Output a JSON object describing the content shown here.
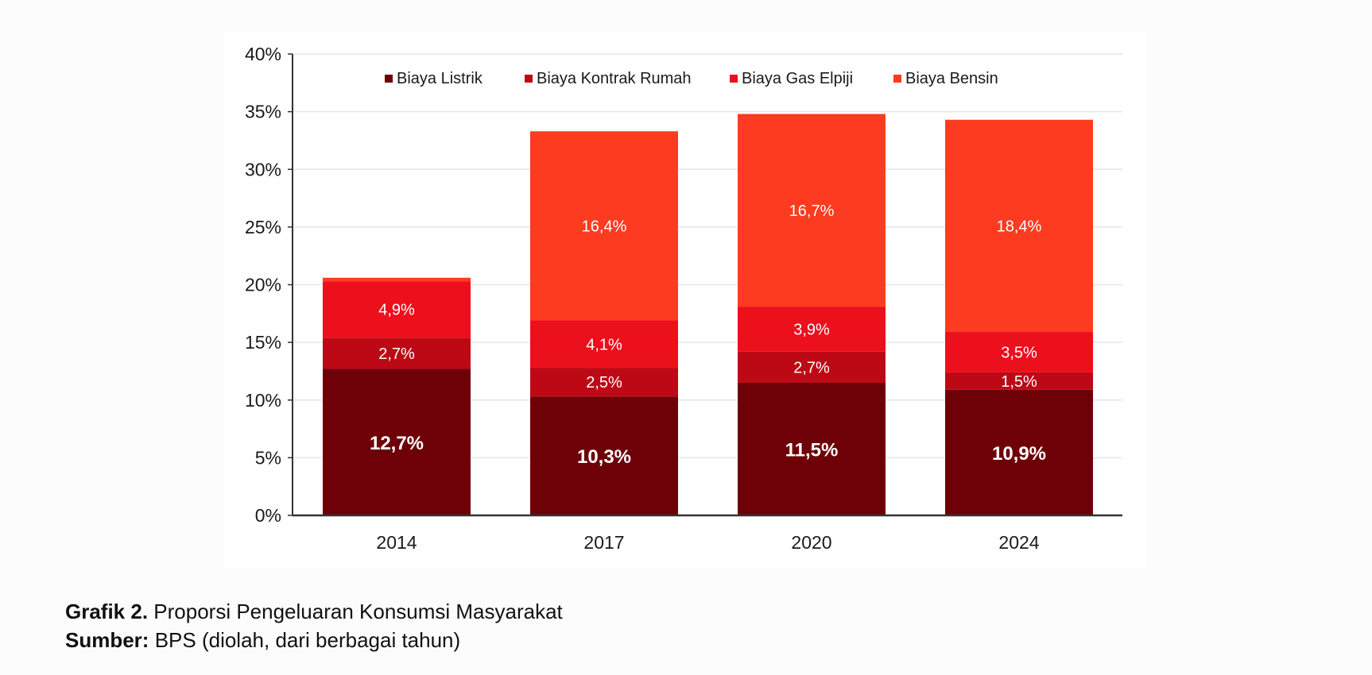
{
  "caption": {
    "figure_label": "Grafik 2.",
    "figure_title": "Proporsi Pengeluaran Konsumsi Masyarakat",
    "source_label": "Sumber:",
    "source_text": "BPS (diolah, dari berbagai tahun)"
  },
  "chart_data": {
    "type": "bar",
    "stacked": true,
    "title": "",
    "xlabel": "",
    "ylabel": "",
    "categories": [
      "2014",
      "2017",
      "2020",
      "2024"
    ],
    "ylim": [
      0,
      40
    ],
    "yticks": [
      0,
      5,
      10,
      15,
      20,
      25,
      30,
      35,
      40
    ],
    "ytick_labels": [
      "0%",
      "5%",
      "10%",
      "15%",
      "20%",
      "25%",
      "30%",
      "35%",
      "40%"
    ],
    "grid": true,
    "legend_position": "top",
    "series": [
      {
        "name": "Biaya Listrik",
        "color": "#6e0008",
        "values": [
          12.7,
          10.3,
          11.5,
          10.9
        ],
        "labels": [
          "12,7%",
          "10,3%",
          "11,5%",
          "10,9%"
        ],
        "label_bold": true
      },
      {
        "name": "Biaya Kontrak Rumah",
        "color": "#bd0915",
        "values": [
          2.7,
          2.5,
          2.7,
          1.5
        ],
        "labels": [
          "2,7%",
          "2,5%",
          "2,7%",
          "1,5%"
        ],
        "label_bold": false
      },
      {
        "name": "Biaya Gas Elpiji",
        "color": "#ec0f1c",
        "values": [
          4.9,
          4.1,
          3.9,
          3.5
        ],
        "labels": [
          "4,9%",
          "4,1%",
          "3,9%",
          "3,5%"
        ],
        "label_bold": false
      },
      {
        "name": "Biaya Bensin",
        "color": "#fd3b20",
        "values": [
          0.3,
          16.4,
          16.7,
          18.4
        ],
        "labels": [
          "",
          "16,4%",
          "16,7%",
          "18,4%"
        ],
        "label_bold": false
      }
    ]
  }
}
